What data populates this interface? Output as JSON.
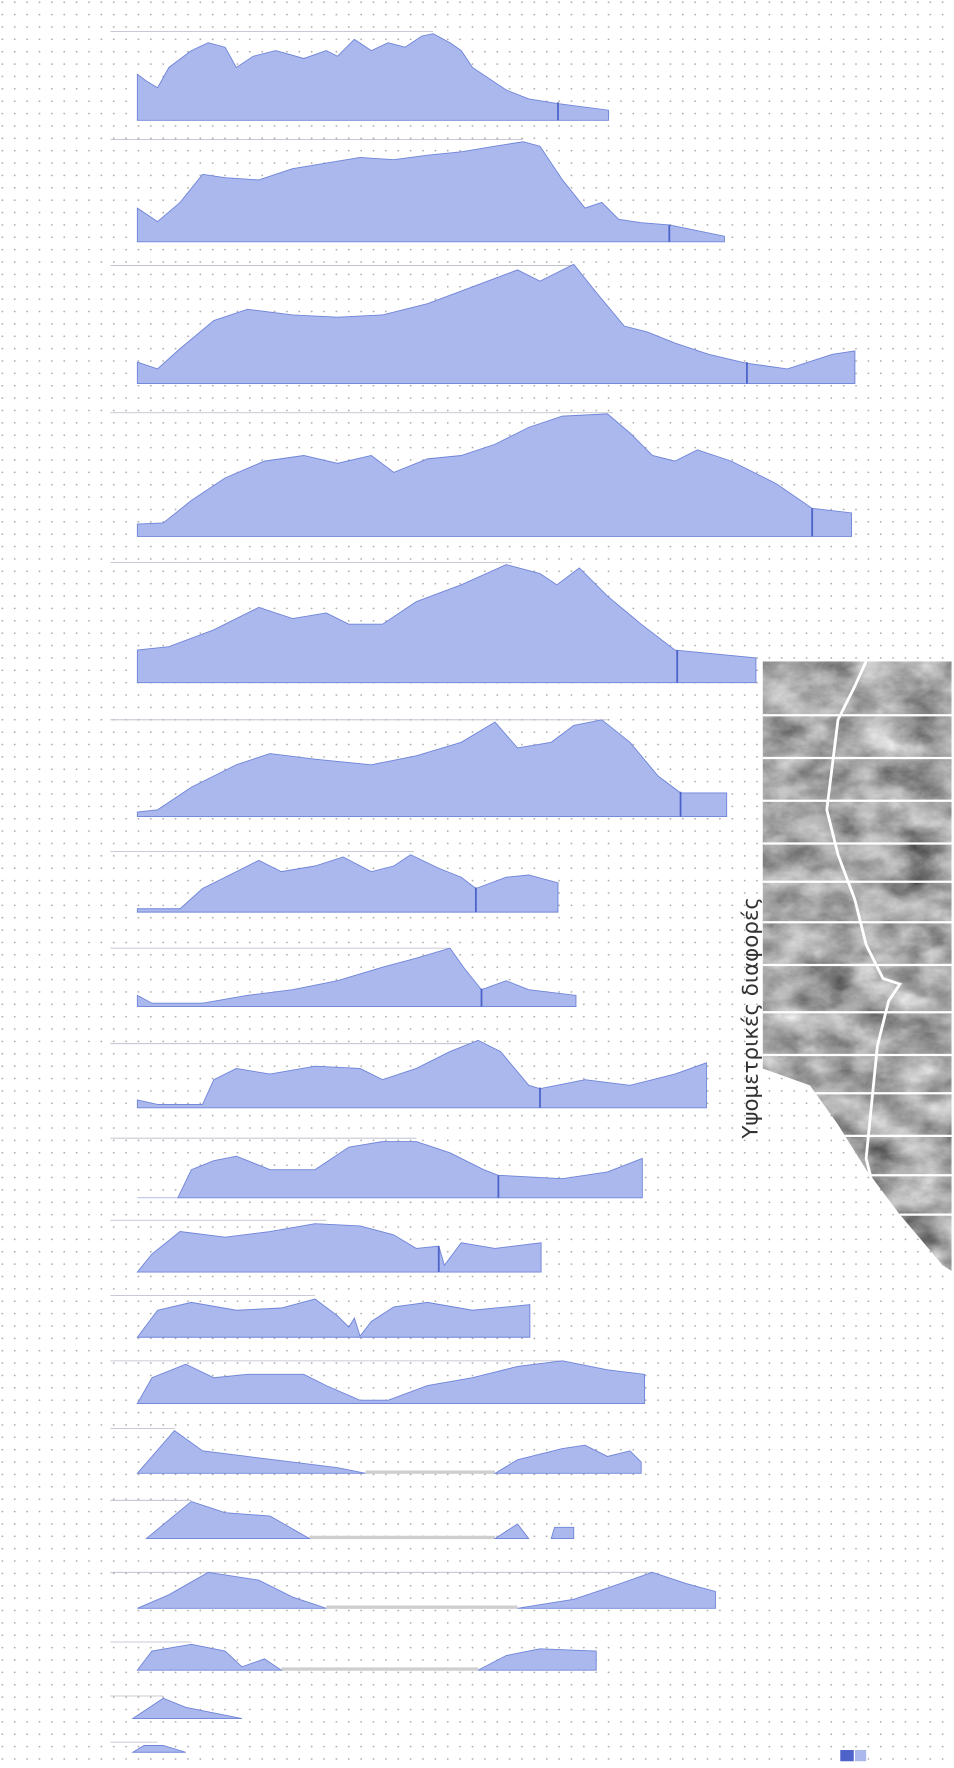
{
  "caption": "Υψομετρικές διαφορές"
}
